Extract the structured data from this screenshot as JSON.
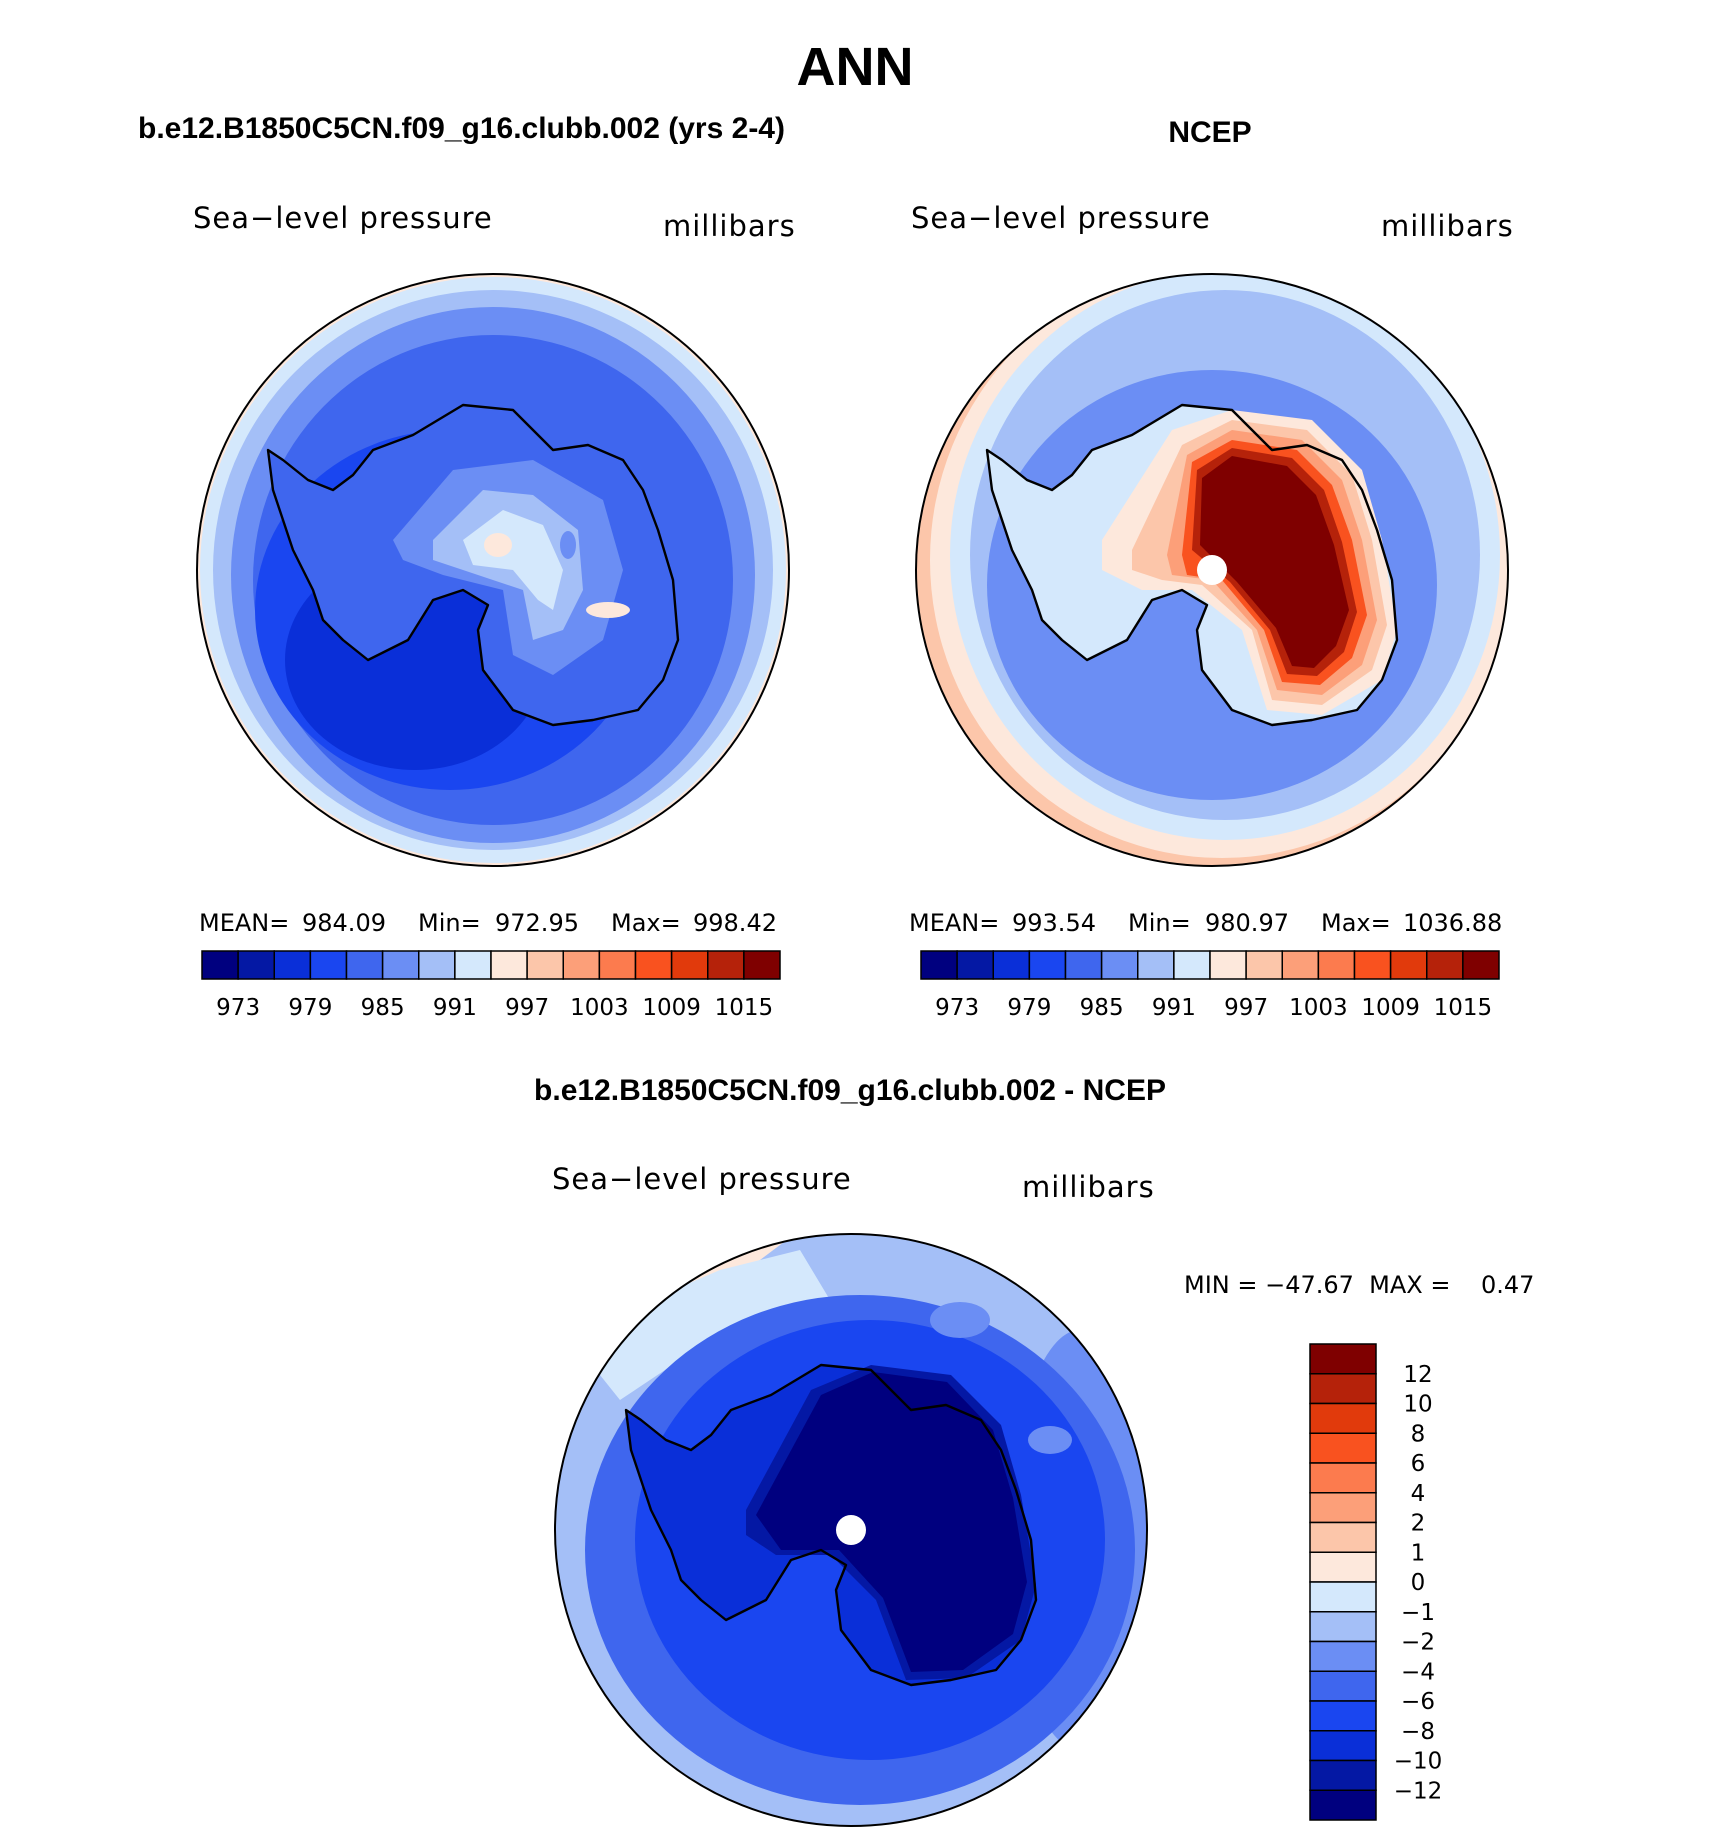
{
  "figure": {
    "title": "ANN",
    "colors": {
      "abs_scale": [
        "#00007f",
        "#0418a4",
        "#0a2fd8",
        "#1a46f0",
        "#3f66ee",
        "#6b8ef4",
        "#a4bff7",
        "#d4e8fc",
        "#fde8dc",
        "#fcc6aa",
        "#fc9f79",
        "#fc7b4e",
        "#f9521f",
        "#e13a0c",
        "#b5220a",
        "#7f0000"
      ],
      "diff_scale": [
        "#7f0000",
        "#b5220a",
        "#e13a0c",
        "#f9521f",
        "#fc7b4e",
        "#fc9f79",
        "#fcc6aa",
        "#fde8dc",
        "#d4e8fc",
        "#a4bff7",
        "#6b8ef4",
        "#3f66ee",
        "#1a46f0",
        "#0a2fd8",
        "#0418a4",
        "#00007f"
      ],
      "land_outline": "#000000"
    },
    "panels": {
      "model": {
        "header": "b.e12.B1850C5CN.f09_g16.clubb.002 (yrs 2-4)",
        "variable": "Sea−level pressure",
        "units": "millibars",
        "mean_label": "MEAN=",
        "mean": "984.09",
        "min_label": "Min=",
        "min": "972.95",
        "max_label": "Max=",
        "max": "998.42"
      },
      "obs": {
        "header": "NCEP",
        "variable": "Sea−level pressure",
        "units": "millibars",
        "mean_label": "MEAN=",
        "mean": "993.54",
        "min_label": "Min=",
        "min": "980.97",
        "max_label": "Max=",
        "max": "1036.88"
      },
      "diff": {
        "header": "b.e12.B1850C5CN.f09_g16.clubb.002 - NCEP",
        "variable": "Sea−level pressure",
        "units": "millibars",
        "minmax": "MIN = −47.67  MAX =    0.47"
      }
    },
    "abs_ticks": [
      "973",
      "979",
      "985",
      "991",
      "997",
      "1003",
      "1009",
      "1015"
    ],
    "diff_ticks": [
      "12",
      "10",
      "8",
      "6",
      "4",
      "2",
      "1",
      "0",
      "−1",
      "−2",
      "−4",
      "−6",
      "−8",
      "−10",
      "−12"
    ]
  }
}
